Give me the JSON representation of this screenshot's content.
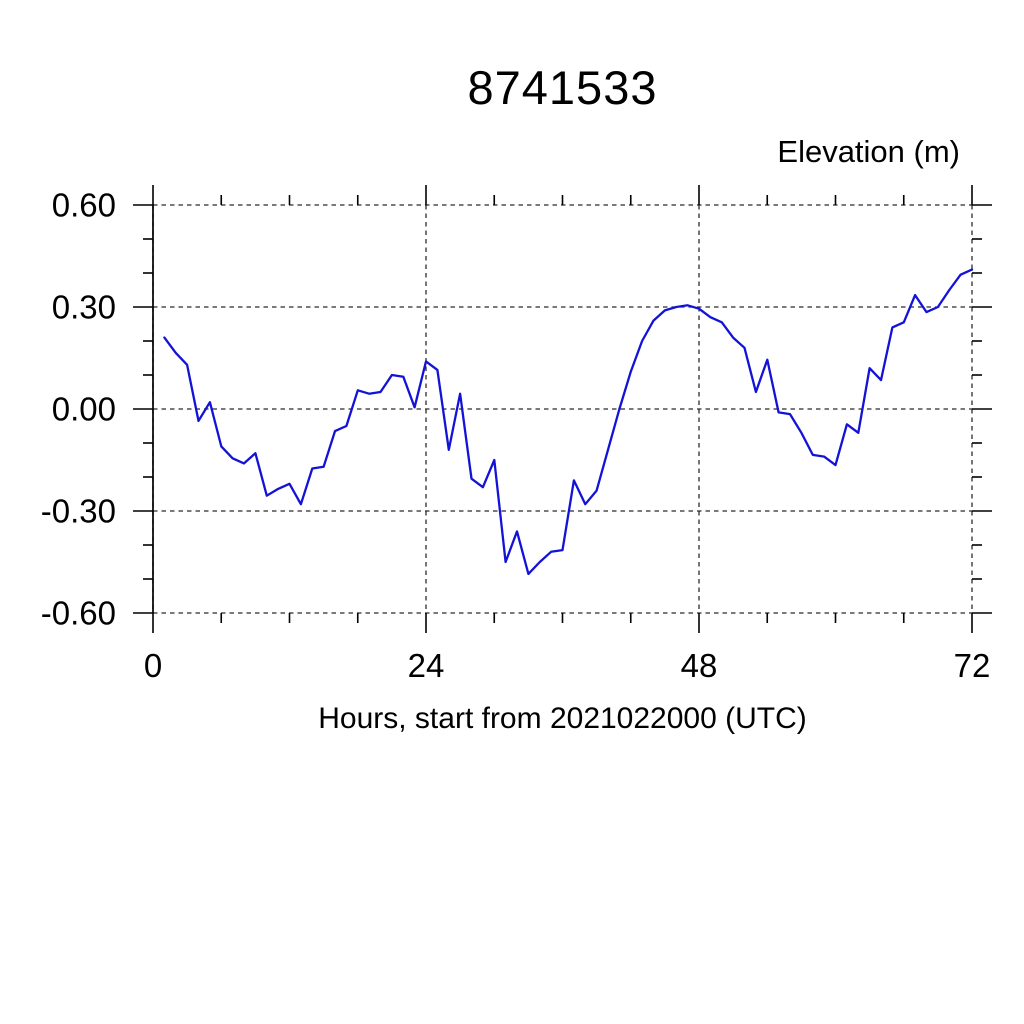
{
  "chart_data": {
    "type": "line",
    "title": "8741533",
    "ylabel": "Elevation (m)",
    "xlabel": "Hours, start from 2021022000 (UTC)",
    "xlim": [
      0,
      72
    ],
    "ylim": [
      -0.6,
      0.6
    ],
    "x_major_ticks": [
      0,
      24,
      48,
      72
    ],
    "x_tick_labels": [
      "0",
      "24",
      "48",
      "72"
    ],
    "x_minor_tick_step": 6,
    "y_major_ticks": [
      0.6,
      0.3,
      0.0,
      -0.3,
      -0.6
    ],
    "y_tick_labels": [
      "0.60",
      "0.30",
      "0.00",
      "-0.30",
      "-0.60"
    ],
    "y_minor_tick_step": 0.1,
    "grid": "dashed lines at every major tick, including frame edges",
    "legend_position": "none",
    "colors": {
      "line": "#1313d7",
      "frame": "#000000",
      "grid": "#2b2b2b",
      "background": "#ffffff"
    },
    "series": [
      {
        "name": "elevation",
        "x": [
          1,
          2,
          3,
          4,
          5,
          6,
          7,
          8,
          9,
          10,
          11,
          12,
          13,
          14,
          15,
          16,
          17,
          18,
          19,
          20,
          21,
          22,
          23,
          24,
          25,
          26,
          27,
          28,
          29,
          30,
          31,
          32,
          33,
          34,
          35,
          36,
          37,
          38,
          39,
          40,
          41,
          42,
          43,
          44,
          45,
          46,
          47,
          48,
          49,
          50,
          51,
          52,
          53,
          54,
          55,
          56,
          57,
          58,
          59,
          60,
          61,
          62,
          63,
          64,
          65,
          66,
          67,
          68,
          69,
          70,
          71,
          72
        ],
        "values": [
          0.21,
          0.165,
          0.13,
          -0.035,
          0.02,
          -0.11,
          -0.145,
          -0.16,
          -0.13,
          -0.255,
          -0.235,
          -0.22,
          -0.28,
          -0.175,
          -0.17,
          -0.065,
          -0.05,
          0.055,
          0.045,
          0.05,
          0.1,
          0.095,
          0.005,
          0.14,
          0.115,
          -0.12,
          0.045,
          -0.205,
          -0.23,
          -0.15,
          -0.45,
          -0.36,
          -0.485,
          -0.45,
          -0.42,
          -0.415,
          -0.21,
          -0.28,
          -0.24,
          -0.12,
          0.0,
          0.11,
          0.2,
          0.26,
          0.29,
          0.3,
          0.305,
          0.295,
          0.27,
          0.255,
          0.21,
          0.18,
          0.05,
          0.145,
          -0.01,
          -0.015,
          -0.07,
          -0.135,
          -0.14,
          -0.165,
          -0.045,
          -0.07,
          0.12,
          0.085,
          0.24,
          0.255,
          0.335,
          0.285,
          0.3,
          0.35,
          0.395,
          0.41
        ]
      }
    ]
  }
}
